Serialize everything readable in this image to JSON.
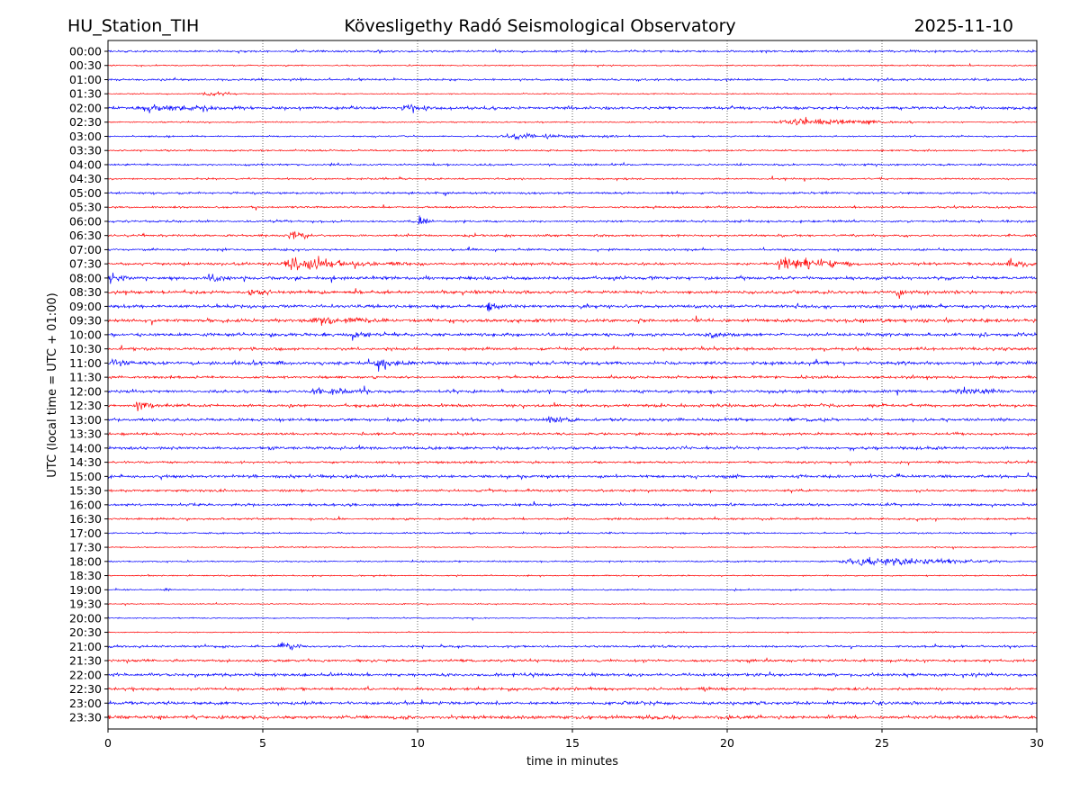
{
  "header": {
    "station": "HU_Station_TIH",
    "observatory": "Kövesligethy Radó Seismological Observatory",
    "date": "2025-11-10"
  },
  "chart_data": {
    "type": "line",
    "title": "Kövesligethy Radó Seismological Observatory",
    "xlabel": "time in minutes",
    "ylabel": "UTC (local time = UTC + 01:00)",
    "xlim": [
      0,
      30
    ],
    "xticks": [
      "0",
      "5",
      "10",
      "15",
      "20",
      "25",
      "30"
    ],
    "xtick_values": [
      0,
      5,
      10,
      15,
      20,
      25,
      30
    ],
    "grid": "vertical dotted at x ticks",
    "colors": {
      "even": "#0000ff",
      "odd": "#ff0000",
      "grid": "#000000"
    },
    "rows": [
      "00:00",
      "00:30",
      "01:00",
      "01:30",
      "02:00",
      "02:30",
      "03:00",
      "03:30",
      "04:00",
      "04:30",
      "05:00",
      "05:30",
      "06:00",
      "06:30",
      "07:00",
      "07:30",
      "08:00",
      "08:30",
      "09:00",
      "09:30",
      "10:00",
      "10:30",
      "11:00",
      "11:30",
      "12:00",
      "12:30",
      "13:00",
      "13:30",
      "14:00",
      "14:30",
      "15:00",
      "15:30",
      "16:00",
      "16:30",
      "17:00",
      "17:30",
      "18:00",
      "18:30",
      "19:00",
      "19:30",
      "20:00",
      "20:30",
      "21:00",
      "21:30",
      "22:00",
      "22:30",
      "23:00",
      "23:30"
    ],
    "noise_level": [
      1.0,
      0.6,
      1.0,
      0.5,
      1.4,
      0.6,
      0.7,
      0.8,
      0.9,
      0.8,
      1.0,
      0.9,
      1.0,
      1.0,
      1.0,
      1.3,
      1.5,
      1.5,
      1.5,
      1.6,
      1.5,
      1.3,
      1.6,
      1.2,
      1.4,
      1.4,
      1.4,
      1.1,
      1.4,
      1.0,
      1.4,
      1.1,
      1.2,
      1.0,
      0.8,
      0.6,
      0.7,
      0.6,
      0.6,
      0.5,
      0.5,
      0.5,
      1.0,
      1.2,
      1.4,
      1.3,
      1.5,
      1.6
    ],
    "events": [
      {
        "row": "01:30",
        "start": 3.0,
        "duration": 1.2,
        "amplitude": 2.5
      },
      {
        "row": "02:00",
        "start": 0.8,
        "duration": 3.5,
        "amplitude": 2.5
      },
      {
        "row": "02:00",
        "start": 9.4,
        "duration": 1.0,
        "amplitude": 2.0
      },
      {
        "row": "02:30",
        "start": 21.5,
        "duration": 4.5,
        "amplitude": 3.5
      },
      {
        "row": "03:00",
        "start": 12.5,
        "duration": 4.0,
        "amplitude": 2.2
      },
      {
        "row": "06:00",
        "start": 10.0,
        "duration": 0.5,
        "amplitude": 5.0
      },
      {
        "row": "06:30",
        "start": 5.8,
        "duration": 0.8,
        "amplitude": 4.0
      },
      {
        "row": "07:30",
        "start": 5.5,
        "duration": 4.0,
        "amplitude": 5.0
      },
      {
        "row": "07:30",
        "start": 21.5,
        "duration": 2.5,
        "amplitude": 9.0
      },
      {
        "row": "07:30",
        "start": 29.0,
        "duration": 0.7,
        "amplitude": 4.0
      },
      {
        "row": "08:00",
        "start": 0.0,
        "duration": 0.6,
        "amplitude": 6.0
      },
      {
        "row": "08:00",
        "start": 3.1,
        "duration": 1.0,
        "amplitude": 3.5
      },
      {
        "row": "08:30",
        "start": 4.5,
        "duration": 0.6,
        "amplitude": 5.0
      },
      {
        "row": "08:30",
        "start": 25.4,
        "duration": 0.6,
        "amplitude": 4.0
      },
      {
        "row": "09:00",
        "start": 12.2,
        "duration": 0.6,
        "amplitude": 5.5
      },
      {
        "row": "09:30",
        "start": 6.5,
        "duration": 2.5,
        "amplitude": 3.0
      },
      {
        "row": "10:00",
        "start": 7.8,
        "duration": 0.8,
        "amplitude": 4.0
      },
      {
        "row": "10:00",
        "start": 19.2,
        "duration": 1.0,
        "amplitude": 3.0
      },
      {
        "row": "11:00",
        "start": 0.0,
        "duration": 0.8,
        "amplitude": 3.5
      },
      {
        "row": "11:00",
        "start": 8.5,
        "duration": 1.5,
        "amplitude": 3.0
      },
      {
        "row": "12:00",
        "start": 6.5,
        "duration": 2.0,
        "amplitude": 3.5
      },
      {
        "row": "12:00",
        "start": 27.2,
        "duration": 2.0,
        "amplitude": 3.0
      },
      {
        "row": "12:30",
        "start": 0.8,
        "duration": 1.0,
        "amplitude": 3.5
      },
      {
        "row": "13:00",
        "start": 14.0,
        "duration": 1.5,
        "amplitude": 2.5
      },
      {
        "row": "18:00",
        "start": 23.5,
        "duration": 5.5,
        "amplitude": 4.5
      },
      {
        "row": "21:00",
        "start": 5.5,
        "duration": 0.8,
        "amplitude": 5.0
      },
      {
        "row": "19:00",
        "start": 1.8,
        "duration": 0.3,
        "amplitude": 3.0
      }
    ]
  }
}
